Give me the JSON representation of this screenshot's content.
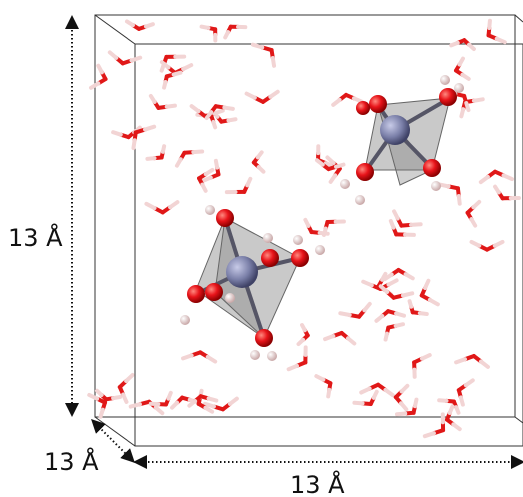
{
  "labels": {
    "height": "13 Å",
    "depth": "13 Å",
    "width": "13 Å"
  }
}
